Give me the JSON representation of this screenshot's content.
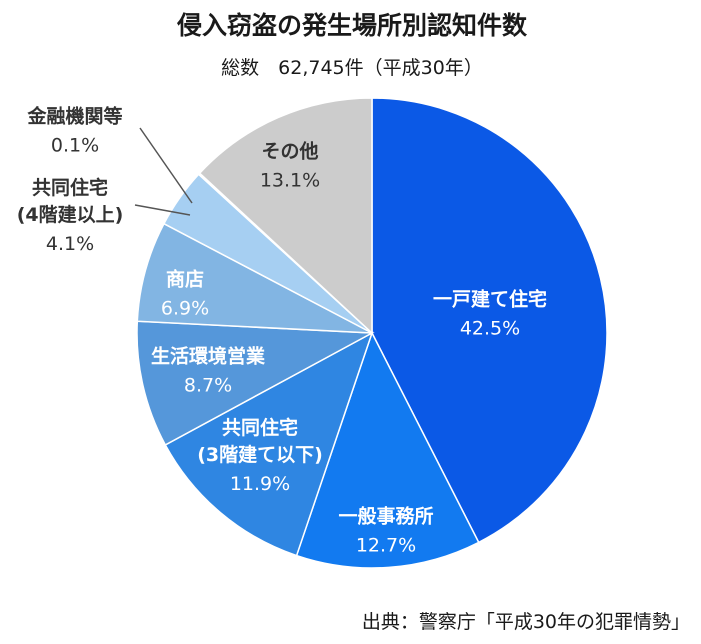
{
  "chart_data": {
    "type": "pie",
    "title": "侵入窃盗の発生場所別認知件数",
    "subtitle": "総数　62,745件（平成30年）",
    "source": "出典：警察庁「平成30年の犯罪情勢」",
    "slices": [
      {
        "label": [
          "一戸建て住宅"
        ],
        "value": 42.5,
        "value_label": "42.5%",
        "color": "#0b59e6"
      },
      {
        "label": [
          "一般事務所"
        ],
        "value": 12.7,
        "value_label": "12.7%",
        "color": "#127af0"
      },
      {
        "label": [
          "共同住宅",
          "(3階建て以下)"
        ],
        "value": 11.9,
        "value_label": "11.9%",
        "color": "#2f86e2"
      },
      {
        "label": [
          "生活環境営業"
        ],
        "value": 8.7,
        "value_label": "8.7%",
        "color": "#5597da"
      },
      {
        "label": [
          "商店"
        ],
        "value": 6.9,
        "value_label": "6.9%",
        "color": "#82b5e3"
      },
      {
        "label": [
          "共同住宅",
          "(4階建以上)"
        ],
        "value": 4.1,
        "value_label": "4.1%",
        "color": "#a6cff2"
      },
      {
        "label": [
          "金融機関等"
        ],
        "value": 0.1,
        "value_label": "0.1%",
        "color": "#a6cff2"
      },
      {
        "label": [
          "その他"
        ],
        "value": 13.1,
        "value_label": "13.1%",
        "color": "#cccccc"
      }
    ]
  }
}
